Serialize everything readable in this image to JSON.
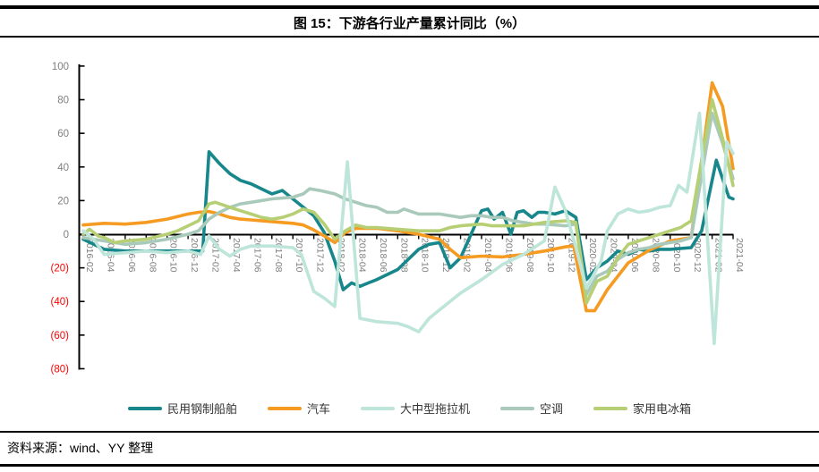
{
  "page": {
    "title": "图 15：下游各行业产量累计同比（%）",
    "source": "资料来源：wind、YY 整理"
  },
  "chart_data": {
    "type": "line",
    "title": "图 15：下游各行业产量累计同比（%）",
    "unit": "%",
    "grid": false,
    "legend_position": "bottom",
    "x_axis": {
      "label_color": "#7f7f7f",
      "labels": [
        "2016-02",
        "2016-04",
        "2016-06",
        "2016-08",
        "2016-10",
        "2016-12",
        "2017-02",
        "2017-04",
        "2017-06",
        "2017-08",
        "2017-10",
        "2017-12",
        "2018-02",
        "2018-04",
        "2018-06",
        "2018-08",
        "2018-10",
        "2018-12",
        "2019-02",
        "2019-04",
        "2019-06",
        "2019-08",
        "2019-10",
        "2019-12",
        "2020-02",
        "2020-04",
        "2020-06",
        "2020-08",
        "2020-10",
        "2020-12",
        "2021-02",
        "2021-04"
      ]
    },
    "y_axis": {
      "min": -80,
      "max": 100,
      "label_color": "#7f7f7f",
      "negative_color": "#ff0000",
      "ticks": [
        {
          "label": "100",
          "value": 100,
          "negative": false
        },
        {
          "label": "80",
          "value": 80,
          "negative": false
        },
        {
          "label": "60",
          "value": 60,
          "negative": false
        },
        {
          "label": "40",
          "value": 40,
          "negative": false
        },
        {
          "label": "20",
          "value": 20,
          "negative": false
        },
        {
          "label": "0",
          "value": 0,
          "negative": false
        },
        {
          "label": "(20)",
          "value": -20,
          "negative": true
        },
        {
          "label": "(40)",
          "value": -40,
          "negative": true
        },
        {
          "label": "(60)",
          "value": -60,
          "negative": true
        },
        {
          "label": "(80)",
          "value": -80,
          "negative": true
        }
      ]
    },
    "x_unit_note": "series points are [x,y]: x = position in 2-month steps where 0 = 2016-02 and 31 = 2021-04; y = cumulative YoY %",
    "series": [
      {
        "id": "ships",
        "name": "民用钢制船舶",
        "color": "#17878B",
        "points": [
          [
            0,
            -3
          ],
          [
            0.5,
            -6
          ],
          [
            1,
            -9
          ],
          [
            2,
            -10
          ],
          [
            3,
            -10
          ],
          [
            4,
            -10
          ],
          [
            5,
            -10
          ],
          [
            5.7,
            -10
          ],
          [
            6,
            49
          ],
          [
            6.5,
            42
          ],
          [
            7,
            36
          ],
          [
            7.5,
            32
          ],
          [
            8,
            30
          ],
          [
            8.5,
            27
          ],
          [
            9,
            24
          ],
          [
            9.5,
            26
          ],
          [
            10,
            21
          ],
          [
            10.5,
            16
          ],
          [
            11,
            11
          ],
          [
            11.5,
            1
          ],
          [
            12,
            -16
          ],
          [
            12.4,
            -33
          ],
          [
            12.8,
            -29
          ],
          [
            13.2,
            -31
          ],
          [
            13.6,
            -29
          ],
          [
            14,
            -27
          ],
          [
            15,
            -21
          ],
          [
            16,
            -9
          ],
          [
            16.5,
            -6
          ],
          [
            17,
            -5
          ],
          [
            17.5,
            -20
          ],
          [
            18,
            -14
          ],
          [
            18.5,
            0
          ],
          [
            19,
            14
          ],
          [
            19.3,
            15
          ],
          [
            19.6,
            9
          ],
          [
            20,
            13
          ],
          [
            20.4,
            0
          ],
          [
            20.7,
            13
          ],
          [
            21,
            14
          ],
          [
            21.4,
            10
          ],
          [
            21.7,
            13
          ],
          [
            22,
            13
          ],
          [
            22.5,
            12
          ],
          [
            23,
            14
          ],
          [
            23.5,
            10
          ],
          [
            24,
            -27
          ],
          [
            24.5,
            -20
          ],
          [
            25,
            -16
          ],
          [
            25.5,
            -10
          ],
          [
            26,
            -12
          ],
          [
            26.5,
            -9
          ],
          [
            27,
            -10
          ],
          [
            27.5,
            -9
          ],
          [
            28,
            -9
          ],
          [
            29,
            -8
          ],
          [
            29.5,
            2
          ],
          [
            30,
            32
          ],
          [
            30.2,
            44
          ],
          [
            30.5,
            33
          ],
          [
            30.8,
            22
          ],
          [
            31,
            21
          ]
        ]
      },
      {
        "id": "auto",
        "name": "汽车",
        "color": "#F59B22",
        "points": [
          [
            0,
            5.5
          ],
          [
            1,
            6.5
          ],
          [
            2,
            6
          ],
          [
            3,
            7
          ],
          [
            4,
            9
          ],
          [
            5,
            12
          ],
          [
            5.5,
            13
          ],
          [
            6,
            13.5
          ],
          [
            6.5,
            12
          ],
          [
            7,
            10
          ],
          [
            7.5,
            9
          ],
          [
            8,
            8.5
          ],
          [
            9,
            7.5
          ],
          [
            10,
            6.5
          ],
          [
            10.5,
            5.5
          ],
          [
            11,
            2.5
          ],
          [
            11.5,
            -1
          ],
          [
            12,
            -5
          ],
          [
            12.5,
            1
          ],
          [
            13,
            3.5
          ],
          [
            14,
            3.5
          ],
          [
            15,
            2
          ],
          [
            16,
            0
          ],
          [
            17,
            -3
          ],
          [
            17.5,
            -9
          ],
          [
            18,
            -14
          ],
          [
            19,
            -13
          ],
          [
            20,
            -13.5
          ],
          [
            21,
            -12
          ],
          [
            22,
            -10
          ],
          [
            23,
            -7.5
          ],
          [
            23.4,
            -7
          ],
          [
            24,
            -45.5
          ],
          [
            24.4,
            -45.5
          ],
          [
            25,
            -33
          ],
          [
            26,
            -17
          ],
          [
            27,
            -9.5
          ],
          [
            28,
            -4
          ],
          [
            29,
            -2
          ],
          [
            30,
            90
          ],
          [
            30.5,
            76
          ],
          [
            31,
            39
          ]
        ]
      },
      {
        "id": "tractor",
        "name": "大中型拖拉机",
        "color": "#BEE5DA",
        "points": [
          [
            0,
            2
          ],
          [
            0.5,
            -3
          ],
          [
            1,
            -12
          ],
          [
            2,
            -11
          ],
          [
            3,
            -10
          ],
          [
            4,
            -11
          ],
          [
            5,
            -10
          ],
          [
            5.6,
            -12
          ],
          [
            6,
            -1
          ],
          [
            6.5,
            -9
          ],
          [
            7,
            -13
          ],
          [
            7.5,
            -9
          ],
          [
            8,
            -7
          ],
          [
            9,
            -7
          ],
          [
            10,
            -8
          ],
          [
            10.4,
            -12
          ],
          [
            11,
            -34
          ],
          [
            11.5,
            -38
          ],
          [
            12,
            -43
          ],
          [
            12.6,
            43
          ],
          [
            13.2,
            -50
          ],
          [
            14,
            -52
          ],
          [
            15,
            -53
          ],
          [
            15.5,
            -55
          ],
          [
            16,
            -58
          ],
          [
            16.5,
            -50
          ],
          [
            17,
            -45
          ],
          [
            18,
            -35
          ],
          [
            19,
            -27
          ],
          [
            20,
            -18
          ],
          [
            21,
            -12
          ],
          [
            22,
            -4
          ],
          [
            22.5,
            28
          ],
          [
            23,
            14
          ],
          [
            23.5,
            -8
          ],
          [
            24,
            -32
          ],
          [
            24.7,
            -16
          ],
          [
            25,
            2
          ],
          [
            25.5,
            12
          ],
          [
            26,
            15
          ],
          [
            26.5,
            13
          ],
          [
            27,
            14
          ],
          [
            27.5,
            16
          ],
          [
            28,
            17
          ],
          [
            28.4,
            29
          ],
          [
            28.8,
            25
          ],
          [
            29.4,
            72
          ],
          [
            30.1,
            -65
          ],
          [
            30.7,
            55
          ],
          [
            31,
            48
          ]
        ]
      },
      {
        "id": "ac",
        "name": "空调",
        "color": "#A9CABB",
        "points": [
          [
            0,
            -2
          ],
          [
            1,
            -4
          ],
          [
            2,
            -6
          ],
          [
            3,
            -5
          ],
          [
            4,
            -3
          ],
          [
            5,
            0
          ],
          [
            5.5,
            2
          ],
          [
            6,
            9
          ],
          [
            6.5,
            13
          ],
          [
            7,
            16
          ],
          [
            7.5,
            18
          ],
          [
            8,
            19
          ],
          [
            9,
            21
          ],
          [
            10,
            22
          ],
          [
            10.5,
            24
          ],
          [
            10.8,
            27
          ],
          [
            11.3,
            26
          ],
          [
            12,
            24
          ],
          [
            12.5,
            21
          ],
          [
            13,
            19
          ],
          [
            13.5,
            17
          ],
          [
            14,
            16
          ],
          [
            14.5,
            13
          ],
          [
            15,
            13
          ],
          [
            15.3,
            15
          ],
          [
            16,
            12
          ],
          [
            17,
            12
          ],
          [
            17.5,
            11
          ],
          [
            18,
            10
          ],
          [
            18.5,
            11
          ],
          [
            19,
            11
          ],
          [
            19.5,
            10
          ],
          [
            20,
            10
          ],
          [
            20.5,
            8
          ],
          [
            21,
            7
          ],
          [
            21.5,
            6
          ],
          [
            22,
            6
          ],
          [
            23,
            5
          ],
          [
            23.5,
            6
          ],
          [
            24,
            -36
          ],
          [
            24.5,
            -25
          ],
          [
            25,
            -22
          ],
          [
            25.5,
            -15
          ],
          [
            26,
            -11
          ],
          [
            26.5,
            -9
          ],
          [
            27,
            -8
          ],
          [
            27.5,
            -6
          ],
          [
            28,
            -5
          ],
          [
            28.5,
            -4
          ],
          [
            29,
            -2
          ],
          [
            30,
            72
          ],
          [
            30.5,
            54
          ],
          [
            31,
            33
          ]
        ]
      },
      {
        "id": "fridge",
        "name": "家用电冰箱",
        "color": "#B7CF74",
        "points": [
          [
            0,
            0
          ],
          [
            0.3,
            3
          ],
          [
            0.7,
            -1
          ],
          [
            1,
            -2
          ],
          [
            1.5,
            -5
          ],
          [
            2,
            -4
          ],
          [
            3,
            -3
          ],
          [
            4,
            0
          ],
          [
            4.5,
            2
          ],
          [
            5,
            5
          ],
          [
            5.5,
            8
          ],
          [
            6,
            18
          ],
          [
            6.3,
            19
          ],
          [
            7,
            16
          ],
          [
            7.5,
            14
          ],
          [
            8,
            12
          ],
          [
            8.5,
            10
          ],
          [
            9,
            9
          ],
          [
            9.5,
            10
          ],
          [
            10,
            12
          ],
          [
            10.5,
            15
          ],
          [
            11,
            13
          ],
          [
            11.5,
            6
          ],
          [
            12,
            -3
          ],
          [
            12.5,
            2
          ],
          [
            13,
            5.5
          ],
          [
            13.5,
            4
          ],
          [
            14,
            4
          ],
          [
            15,
            3
          ],
          [
            16,
            2
          ],
          [
            17,
            2
          ],
          [
            17.5,
            4
          ],
          [
            18,
            5
          ],
          [
            19,
            6
          ],
          [
            19.5,
            5
          ],
          [
            20,
            5
          ],
          [
            21,
            5
          ],
          [
            21.5,
            6
          ],
          [
            22,
            7
          ],
          [
            23,
            8
          ],
          [
            23.5,
            7
          ],
          [
            24,
            -41
          ],
          [
            24.5,
            -28
          ],
          [
            25,
            -25
          ],
          [
            25.5,
            -14
          ],
          [
            26,
            -6
          ],
          [
            26.5,
            -4
          ],
          [
            27,
            -2
          ],
          [
            27.5,
            0
          ],
          [
            28,
            2
          ],
          [
            28.5,
            4
          ],
          [
            29,
            8
          ],
          [
            30,
            80
          ],
          [
            30.5,
            57
          ],
          [
            31,
            29
          ]
        ]
      }
    ]
  }
}
